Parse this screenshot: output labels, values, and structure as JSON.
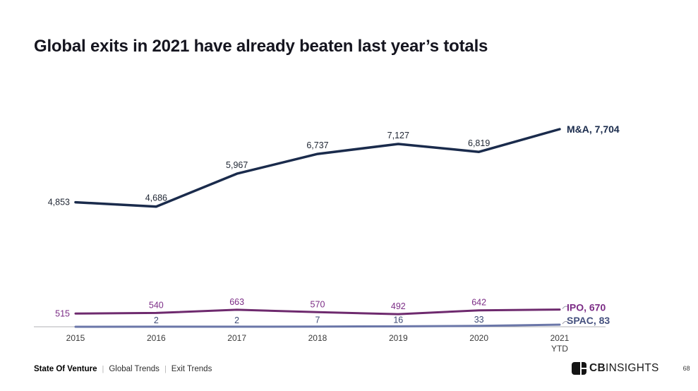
{
  "title": "Global exits in 2021 have already beaten last year’s totals",
  "chart_data": {
    "type": "line",
    "title": "Global exits in 2021 have already beaten last year’s totals",
    "categories": [
      "2015",
      "2016",
      "2017",
      "2018",
      "2019",
      "2020",
      "2021 YTD"
    ],
    "series": [
      {
        "name": "M&A",
        "color": "#1a2b4c",
        "label_color": "#1f2633",
        "end_label_color": "#1a2b4c",
        "values": [
          4853,
          4686,
          5967,
          6737,
          7127,
          6819,
          7704
        ],
        "labels": [
          "4,853",
          "4,686",
          "5,967",
          "6,737",
          "7,127",
          "6,819"
        ],
        "end_label": "M&A, 7,704"
      },
      {
        "name": "IPO",
        "color": "#6e2a6e",
        "label_color": "#7c2d86",
        "end_label_color": "#7c2d86",
        "values": [
          515,
          540,
          663,
          570,
          492,
          642,
          670
        ],
        "labels": [
          "515",
          "540",
          "663",
          "570",
          "492",
          "642"
        ],
        "end_label": "IPO, 670"
      },
      {
        "name": "SPAC",
        "color": "#6a76a8",
        "label_color": "#3d4a75",
        "end_label_color": "#44507e",
        "values": [
          1,
          2,
          2,
          7,
          16,
          33,
          83
        ],
        "labels": [
          "",
          "2",
          "2",
          "7",
          "16",
          "33"
        ],
        "end_label": "SPAC, 83"
      }
    ],
    "xlabel": "",
    "ylabel": "",
    "ylim": [
      0,
      8000
    ],
    "grid": false,
    "legend": "end-of-line series labels",
    "y_axis_shown": false
  },
  "footer": {
    "breadcrumb": [
      "State Of Venture",
      "Global Trends",
      "Exit Trends"
    ],
    "separator": "|",
    "logo": {
      "cb": "CB",
      "insights": "INSIGHTS"
    },
    "page_number": "68"
  }
}
